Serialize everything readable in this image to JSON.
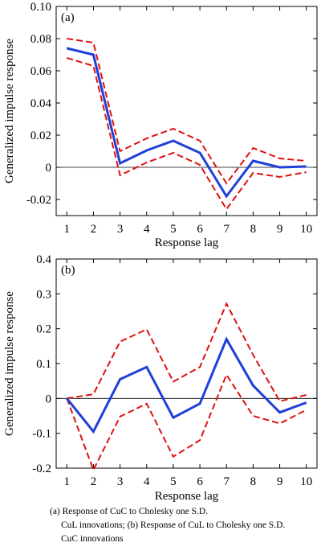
{
  "chart_data": [
    {
      "type": "line",
      "panel_label": "(a)",
      "xlabel": "Response lag",
      "ylabel": "Generalized impulse response",
      "x": [
        1,
        2,
        3,
        4,
        5,
        6,
        7,
        8,
        9,
        10
      ],
      "ylim": [
        -0.03,
        0.1
      ],
      "yticks": [
        -0.02,
        0,
        0.02,
        0.04,
        0.06,
        0.08,
        0.1
      ],
      "ytick_labels": [
        "-0.02",
        "0",
        "0.02",
        "0.04",
        "0.06",
        "0.08",
        "0.10"
      ],
      "series": [
        {
          "role": "response",
          "color": "#1f3fd8",
          "style": "solid",
          "values": [
            0.074,
            0.07,
            0.0025,
            0.0105,
            0.0165,
            0.009,
            -0.018,
            0.004,
            0.0,
            0.0005
          ]
        },
        {
          "role": "upper-band",
          "color": "#e01010",
          "style": "dashed",
          "values": [
            0.08,
            0.0775,
            0.01,
            0.018,
            0.024,
            0.0165,
            -0.01,
            0.012,
            0.0055,
            0.004
          ]
        },
        {
          "role": "lower-band",
          "color": "#e01010",
          "style": "dashed",
          "values": [
            0.068,
            0.063,
            -0.005,
            0.003,
            0.009,
            0.0015,
            -0.026,
            -0.0035,
            -0.006,
            -0.003
          ]
        }
      ],
      "zero_line": true
    },
    {
      "type": "line",
      "panel_label": "(b)",
      "xlabel": "Response lag",
      "ylabel": "Generalized impulse response",
      "x": [
        1,
        2,
        3,
        4,
        5,
        6,
        7,
        8,
        9,
        10
      ],
      "ylim": [
        -0.2,
        0.4
      ],
      "yticks": [
        -0.2,
        -0.1,
        0,
        0.1,
        0.2,
        0.3,
        0.4
      ],
      "ytick_labels": [
        "-0.2",
        "-0.1",
        "0",
        "0.1",
        "0.2",
        "0.3",
        "0.4"
      ],
      "series": [
        {
          "role": "response",
          "color": "#1f3fd8",
          "style": "solid",
          "values": [
            0.0,
            -0.095,
            0.055,
            0.09,
            -0.055,
            -0.015,
            0.17,
            0.037,
            -0.04,
            -0.012
          ]
        },
        {
          "role": "upper-band",
          "color": "#e01010",
          "style": "dashed",
          "values": [
            0.0,
            0.012,
            0.163,
            0.198,
            0.048,
            0.09,
            0.272,
            0.125,
            -0.008,
            0.01
          ]
        },
        {
          "role": "lower-band",
          "color": "#e01010",
          "style": "dashed",
          "values": [
            0.0,
            -0.205,
            -0.052,
            -0.015,
            -0.167,
            -0.12,
            0.068,
            -0.05,
            -0.072,
            -0.033
          ]
        }
      ],
      "zero_line": true
    }
  ],
  "caption": {
    "line1": "(a) Response of CuC to Cholesky one S.D.",
    "line2": "CuL innovations; (b) Response of CuL to Cholesky one S.D.",
    "line3": "CuC innovations"
  }
}
